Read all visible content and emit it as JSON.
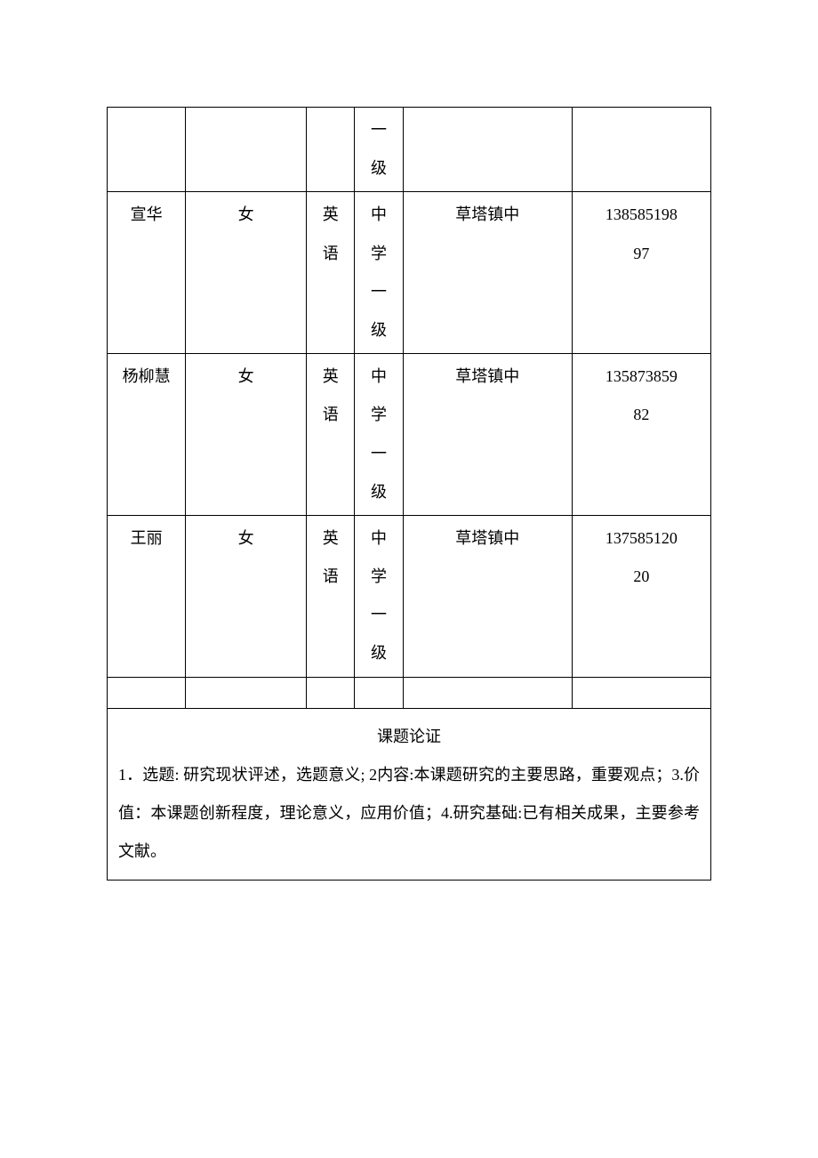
{
  "table": {
    "rows": [
      {
        "name": "",
        "gender": "",
        "subject": "",
        "level": "一级",
        "school": "",
        "phone": ""
      },
      {
        "name": "宣华",
        "gender": "女",
        "subject": "英语",
        "level": "中学一级",
        "school": "草塔镇中",
        "phone": "1385851989​7",
        "phone_line1": "13858519​8",
        "phone_line2": "97"
      },
      {
        "name": "杨柳慧",
        "gender": "女",
        "subject": "英语",
        "level": "中学一级",
        "school": "草塔镇中",
        "phone_line1": "13587385​9",
        "phone_line2": "82"
      },
      {
        "name": "王丽",
        "gender": "女",
        "subject": "英语",
        "level": "中学一级",
        "school": "草塔镇中",
        "phone_line1": "13758512​0",
        "phone_line2": "20"
      }
    ]
  },
  "topic": {
    "title": "课题论证",
    "body": "1．选题: 研究现状评述，选题意义; 2内容:本课题研究的主要思路，重要观点；3.价值：本课题创新程度，理论意义，应用价值；4.研究基础:已有相关成果，主要参考文献。"
  },
  "row0_level_chars": [
    "一",
    "级"
  ],
  "row_level_chars": [
    "中",
    "学",
    "一",
    "级"
  ],
  "row_subject_chars": [
    "英",
    "语"
  ]
}
